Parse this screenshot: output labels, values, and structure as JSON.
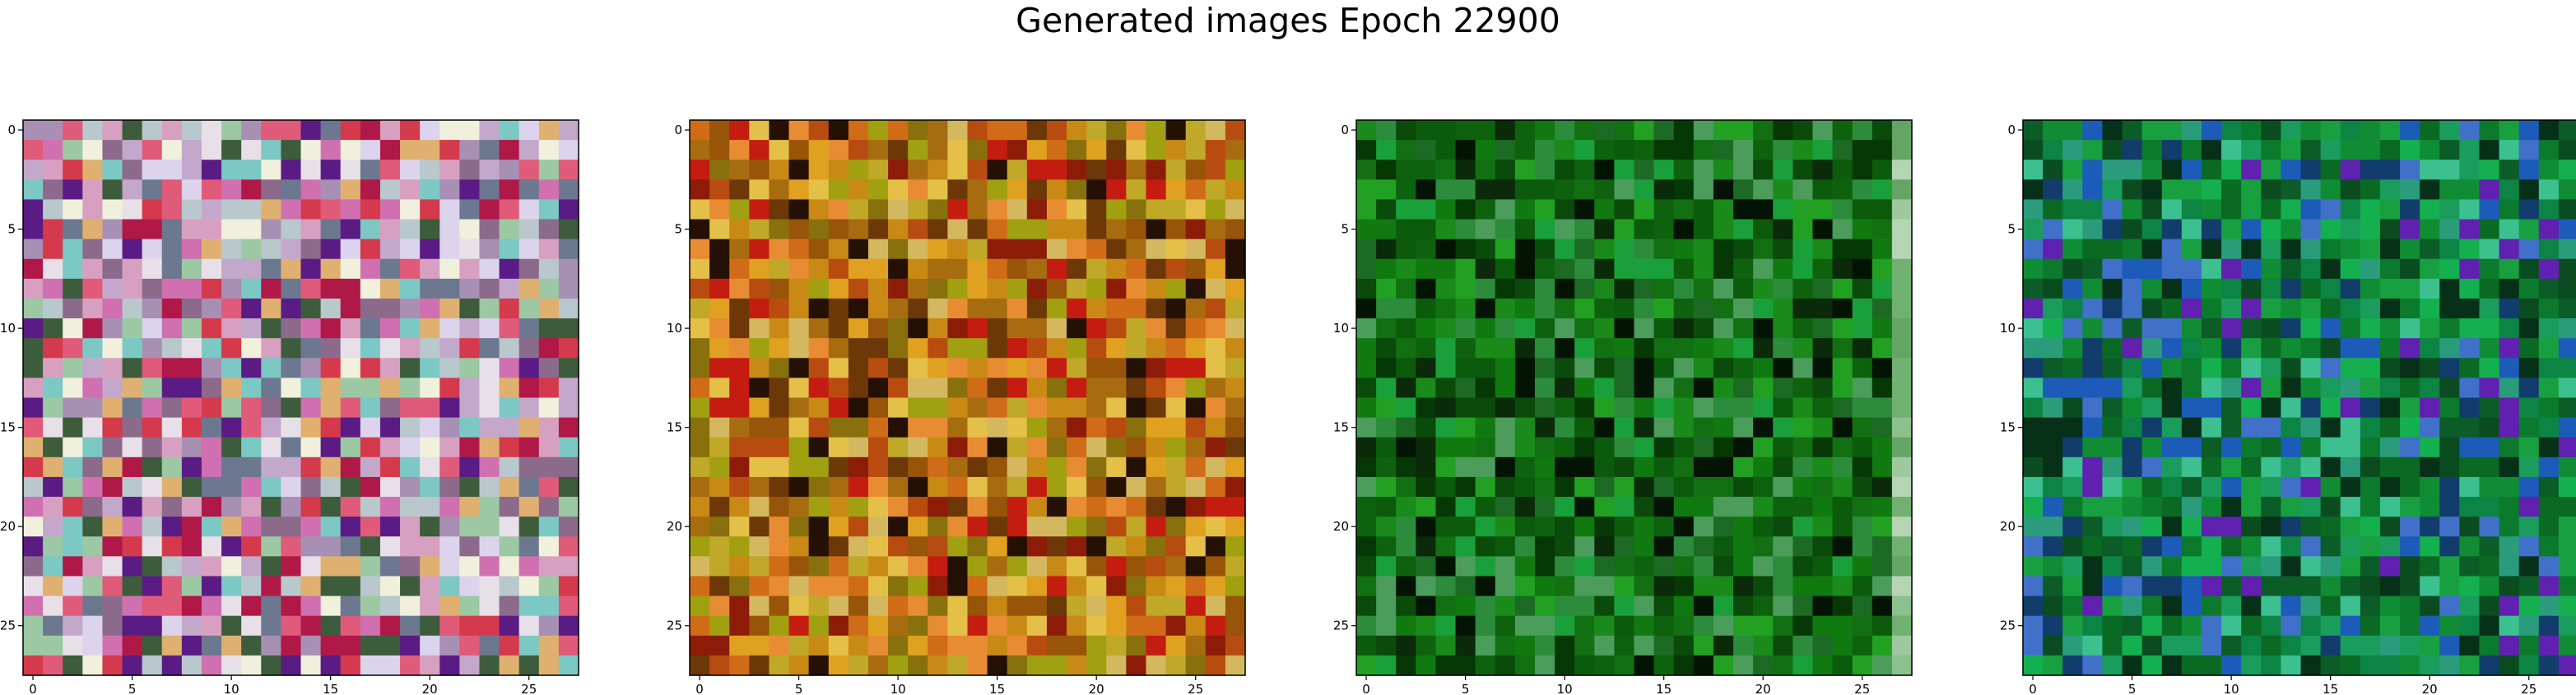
{
  "figure": {
    "title": "Generated images Epoch 22900"
  },
  "chart_data": [
    {
      "type": "heatmap",
      "grid_size": 28,
      "x_ticks": [
        0,
        5,
        10,
        15,
        20,
        25
      ],
      "y_ticks": [
        0,
        5,
        10,
        15,
        20,
        25
      ],
      "xlim": [
        -0.5,
        27.5
      ],
      "ylim": [
        27.5,
        -0.5
      ],
      "palette": [
        "#c4a8cc",
        "#b8c8cc",
        "#dcd4ec",
        "#e8e0e8",
        "#a890b4",
        "#7cc8c4",
        "#e05a7a",
        "#d43a4c",
        "#b01848",
        "#5a1c84",
        "#e0b070",
        "#6c7890",
        "#d8a0c0",
        "#f0f0dc",
        "#9cc8a4",
        "#3c5c3c",
        "#d070b0",
        "#8c6a8c"
      ],
      "seed": 11
    },
    {
      "type": "heatmap",
      "grid_size": 28,
      "x_ticks": [
        0,
        5,
        10,
        15,
        20,
        25
      ],
      "y_ticks": [
        0,
        5,
        10,
        15,
        20,
        25
      ],
      "xlim": [
        -0.5,
        27.5
      ],
      "ylim": [
        27.5,
        -0.5
      ],
      "palette": [
        "#c88a14",
        "#a86c10",
        "#e0a020",
        "#d06c18",
        "#b84c10",
        "#985408",
        "#c0a828",
        "#88700c",
        "#e4c048",
        "#c41c10",
        "#6c3808",
        "#241004",
        "#d4b860",
        "#e88c34",
        "#a0a010",
        "#8c1c08"
      ],
      "seed": 23
    },
    {
      "type": "heatmap",
      "grid_size": 28,
      "x_ticks": [
        0,
        5,
        10,
        15,
        20,
        25
      ],
      "y_ticks": [
        0,
        5,
        10,
        15,
        20,
        25
      ],
      "xlim": [
        -0.5,
        27.5
      ],
      "ylim": [
        27.5,
        -0.5
      ],
      "palette": [
        "#0c5a0c",
        "#127012",
        "#0a4a0a",
        "#1a8a1a",
        "#0e620e",
        "#063806",
        "#22a022",
        "#0a2a0a",
        "#2c8c3c",
        "#107a10",
        "#1c6a24",
        "#041404",
        "#4c9c5c",
        "#1aa03a"
      ],
      "last_column_palette": [
        "#8cc08c",
        "#a0c8a0",
        "#70b070",
        "#b4d4b4",
        "#64a464"
      ],
      "seed": 37
    },
    {
      "type": "heatmap",
      "grid_size": 28,
      "x_ticks": [
        0,
        5,
        10,
        15,
        20,
        25
      ],
      "y_ticks": [
        0,
        5,
        10,
        15,
        20,
        25
      ],
      "xlim": [
        -0.5,
        27.5
      ],
      "ylim": [
        27.5,
        -0.5
      ],
      "palette": [
        "#0c7a2c",
        "#108c34",
        "#0a6a24",
        "#18a040",
        "#0c5c28",
        "#1a9c5c",
        "#0a4c20",
        "#2a9c7c",
        "#123c6c",
        "#3cc090",
        "#1c5cb8",
        "#063018",
        "#14b050",
        "#0c8444",
        "#4070c8",
        "#6020b0"
      ],
      "seed": 53
    }
  ]
}
